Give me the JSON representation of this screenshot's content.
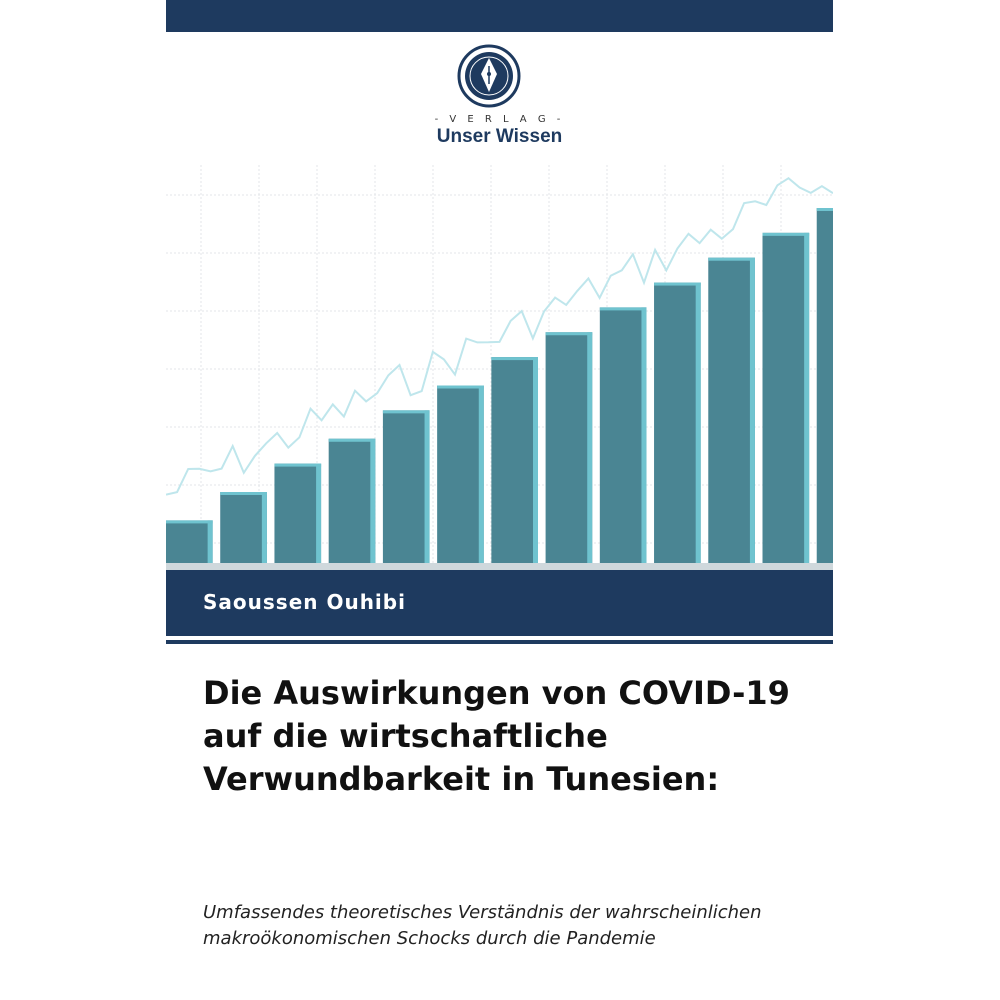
{
  "cover": {
    "publisher": {
      "verlag_label": "- V E R L A G -",
      "name": "Unser Wissen",
      "seal_text": "UNSER WISSEN VERLAG"
    },
    "author": "Saoussen Ouhibi",
    "title": "Die Auswirkungen von COVID-19 auf die wirtschaftliche Verwundbarkeit in Tunesien:",
    "subtitle": "Umfassendes theoretisches Verständnis der wahrscheinlichen makroökonomischen Schocks durch die Pandemie",
    "colors": {
      "band": "#1e3a5f",
      "bar_face": "#4a8593",
      "bar_side": "#6fc3cf",
      "trend_line": "#bfe6ec",
      "grid": "#e3e6e8"
    },
    "illustration": {
      "description_icon": "rising-bar-chart-icon",
      "bar_levels": [
        0.12,
        0.2,
        0.28,
        0.35,
        0.43,
        0.5,
        0.58,
        0.65,
        0.72,
        0.79,
        0.86,
        0.93,
        1.0
      ]
    }
  }
}
